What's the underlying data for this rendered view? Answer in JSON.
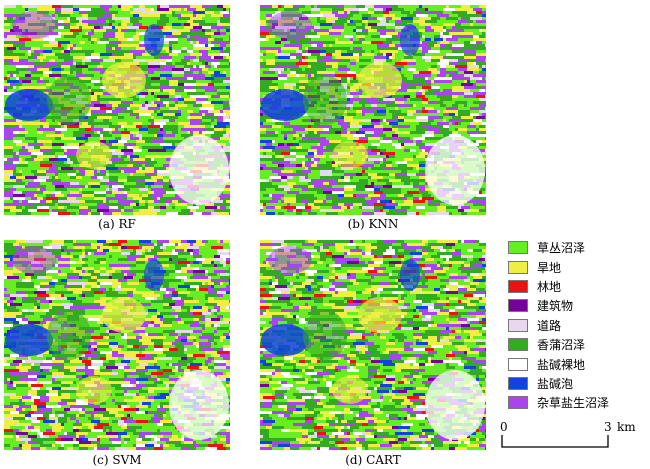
{
  "panels": [
    {
      "caption": "(a) RF"
    },
    {
      "caption": "(b) KNN"
    },
    {
      "caption": "(c) SVM"
    },
    {
      "caption": "(d) CART"
    }
  ],
  "legend": [
    {
      "label": "草丛沼泽",
      "color": "#66ee22"
    },
    {
      "label": "旱地",
      "color": "#eeee44"
    },
    {
      "label": "林地",
      "color": "#ee1111"
    },
    {
      "label": "建筑物",
      "color": "#770099"
    },
    {
      "label": "道路",
      "color": "#e8d8ee"
    },
    {
      "label": "香蒲沼泽",
      "color": "#33aa22"
    },
    {
      "label": "盐碱裸地",
      "color": "#ffffff"
    },
    {
      "label": "盐碱泡",
      "color": "#1144dd"
    },
    {
      "label": "杂草盐生沼泽",
      "color": "#aa44ee"
    }
  ],
  "scale": {
    "start": "0",
    "end": "3",
    "unit": "km"
  }
}
